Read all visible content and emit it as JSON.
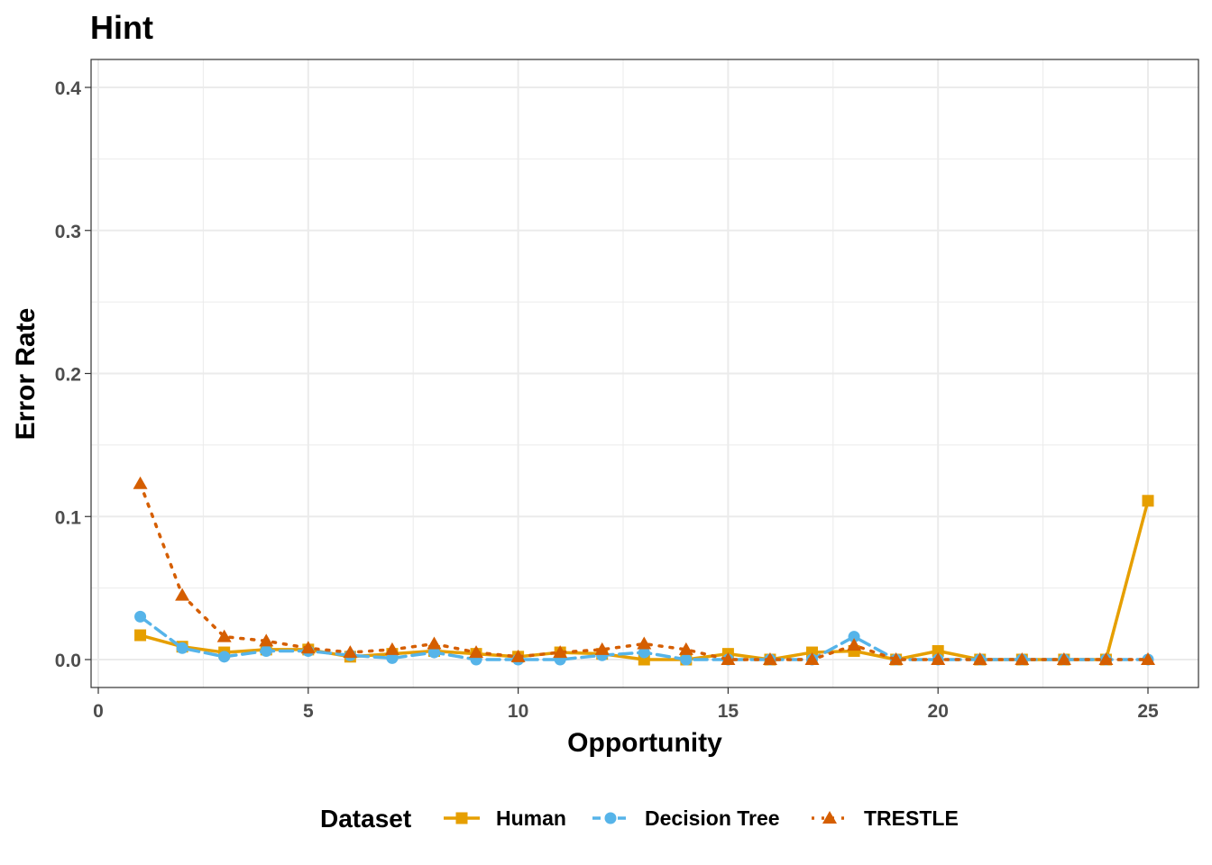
{
  "chart_data": {
    "type": "line",
    "title": "Hint",
    "xlabel": "Opportunity",
    "ylabel": "Error Rate",
    "xlim": [
      0,
      26
    ],
    "ylim": [
      -0.02,
      0.42
    ],
    "x_ticks": [
      0,
      5,
      10,
      15,
      20,
      25
    ],
    "y_ticks": [
      0.0,
      0.1,
      0.2,
      0.3,
      0.4
    ],
    "x_tick_labels": [
      "0",
      "5",
      "10",
      "15",
      "20",
      "25"
    ],
    "y_tick_labels": [
      "0.0",
      "0.1",
      "0.2",
      "0.3",
      "0.4"
    ],
    "grid": true,
    "legend_title": "Dataset",
    "legend_position": "bottom",
    "x": [
      1,
      2,
      3,
      4,
      5,
      6,
      7,
      8,
      9,
      10,
      11,
      12,
      13,
      14,
      15,
      16,
      17,
      18,
      19,
      20,
      21,
      22,
      23,
      24,
      25
    ],
    "series": [
      {
        "name": "Human",
        "color": "#E69F00",
        "line": "solid",
        "marker": "square",
        "values": [
          0.017,
          0.009,
          0.005,
          0.007,
          0.007,
          0.002,
          0.004,
          0.006,
          0.004,
          0.002,
          0.005,
          0.004,
          0.0,
          0.0,
          0.004,
          0.0,
          0.005,
          0.006,
          0.0,
          0.006,
          0.0,
          0.0,
          0.0,
          0.0,
          0.111
        ]
      },
      {
        "name": "Decision Tree",
        "color": "#56B4E9",
        "line": "dashed",
        "marker": "circle",
        "values": [
          0.03,
          0.008,
          0.002,
          0.006,
          0.006,
          0.003,
          0.001,
          0.005,
          0.0,
          0.0,
          0.0,
          0.003,
          0.005,
          0.0,
          0.0,
          0.0,
          0.0,
          0.016,
          0.0,
          0.0,
          0.0,
          0.0,
          0.0,
          0.0,
          0.0
        ]
      },
      {
        "name": "TRESTLE",
        "color": "#D55E00",
        "line": "dotted",
        "marker": "triangle",
        "values": [
          0.123,
          0.045,
          0.016,
          0.013,
          0.008,
          0.005,
          0.007,
          0.011,
          0.005,
          0.002,
          0.005,
          0.007,
          0.011,
          0.007,
          0.0,
          0.0,
          0.0,
          0.01,
          0.0,
          0.0,
          0.0,
          0.0,
          0.0,
          0.0,
          0.0
        ]
      }
    ]
  }
}
